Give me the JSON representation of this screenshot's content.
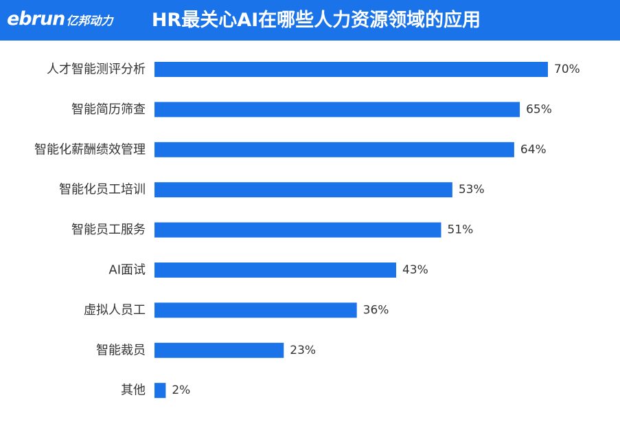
{
  "header": {
    "logo_text": "ebrun",
    "logo_cn": "亿邦动力",
    "title": "HR最关心AI在哪些人力资源领域的应用"
  },
  "colors": {
    "header_bg": "#1b73e9",
    "bar": "#1b73e9",
    "text": "#333333"
  },
  "chart_data": {
    "type": "bar",
    "orientation": "horizontal",
    "title": "HR最关心AI在哪些人力资源领域的应用",
    "categories": [
      "人才智能测评分析",
      "智能简历筛查",
      "智能化薪酬绩效管理",
      "智能化员工培训",
      "智能员工服务",
      "AI面试",
      "虚拟人员工",
      "智能裁员",
      "其他"
    ],
    "values": [
      70,
      65,
      64,
      53,
      51,
      43,
      36,
      23,
      2
    ],
    "value_labels": [
      "70%",
      "65%",
      "64%",
      "53%",
      "51%",
      "43%",
      "36%",
      "23%",
      "2%"
    ],
    "xlim": [
      0,
      70
    ],
    "unit": "%",
    "grid": false,
    "legend": "none"
  }
}
